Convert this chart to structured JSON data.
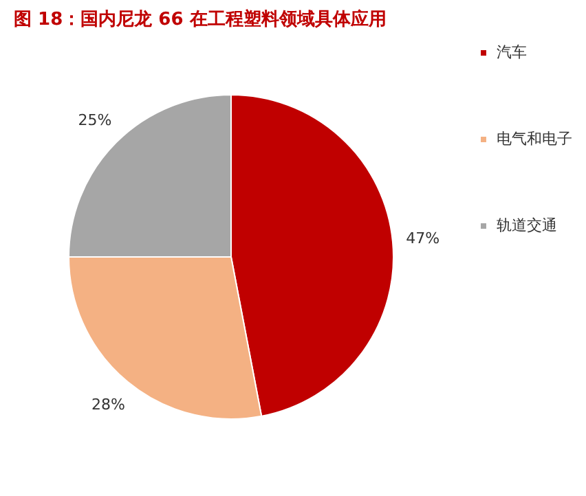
{
  "chart_data": {
    "type": "pie",
    "title": "图 18：国内尼龙 66 在工程塑料领域具体应用",
    "categories": [
      "汽车",
      "电气和电子",
      "轨道交通"
    ],
    "values": [
      47,
      28,
      25
    ],
    "colors": [
      "#c00000",
      "#f4b183",
      "#a6a6a6"
    ],
    "value_labels": [
      "47%",
      "28%",
      "25%"
    ],
    "legend": "right"
  }
}
